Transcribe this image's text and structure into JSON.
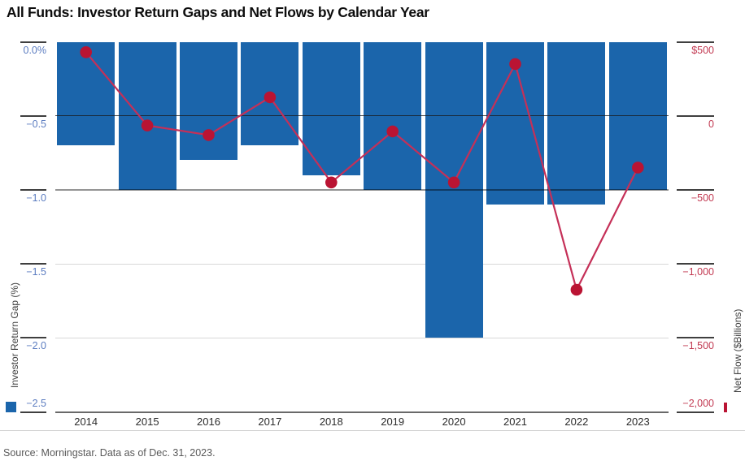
{
  "title": "All Funds: Investor Return Gaps and Net Flows by Calendar Year",
  "source_note": "Source: Morningstar. Data as of Dec. 31, 2023.",
  "colors": {
    "bar_blue": "#1b65ab",
    "dot_red": "#ba1433",
    "line_red": "#c53058",
    "left_tick_label": "#5b7cc0",
    "right_tick_label": "#c23a52",
    "zero_flow_gridline": "rgba(25,25,25,0.78)",
    "mid_gridline": "rgba(0,0,0,0.42)",
    "light_gridline": "#d7d7d7",
    "baseline": "#696969"
  },
  "chart_data": {
    "type": "combo",
    "categories": [
      "2014",
      "2015",
      "2016",
      "2017",
      "2018",
      "2019",
      "2020",
      "2021",
      "2022",
      "2023"
    ],
    "series": [
      {
        "name": "Investor Return Gap (%)",
        "chart": "bar",
        "axis": "left",
        "values": [
          -0.7,
          -1.0,
          -0.8,
          -0.7,
          -0.9,
          -1.0,
          -2.0,
          -1.1,
          -1.1,
          -1.0
        ]
      },
      {
        "name": "Net Flow ($Billions)",
        "chart": "line",
        "axis": "right",
        "values": [
          430,
          -65,
          -130,
          125,
          -450,
          -105,
          -450,
          350,
          -1175,
          -350
        ]
      }
    ],
    "left_axis": {
      "title": "Investor Return Gap (%)",
      "tick_labels": [
        "0.0%",
        "−0.5",
        "−1.0",
        "−1.5",
        "−2.0",
        "−2.5"
      ],
      "tick_values": [
        0,
        -0.5,
        -1.0,
        -1.5,
        -2.0,
        -2.5
      ],
      "range": [
        0,
        -2.5
      ]
    },
    "right_axis": {
      "title": "Net Flow ($Billions)",
      "tick_labels": [
        "$500",
        "0",
        "−500",
        "−1,000",
        "−1,500",
        "−2,000"
      ],
      "tick_values": [
        500,
        0,
        -500,
        -1000,
        -1500,
        -2000
      ],
      "range": [
        500,
        -2000
      ]
    },
    "grid": "horizontal, shared left/right levels; dark line at $0 net flow",
    "legend": "blue square marks bar series, red line marks net-flow series"
  }
}
